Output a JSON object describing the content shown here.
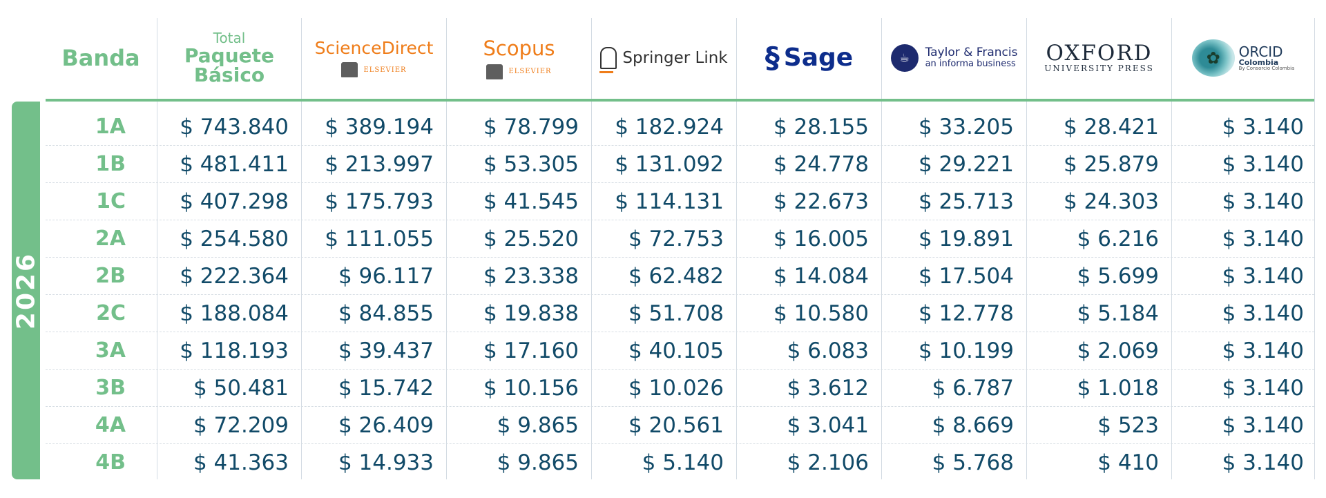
{
  "year": "2026",
  "headers": {
    "banda": "Banda",
    "total": [
      "Total",
      "Paquete",
      "Básico"
    ],
    "sciencedirect": {
      "name": "ScienceDirect",
      "sub": "ELSEVIER"
    },
    "scopus": {
      "name": "Scopus",
      "sub": "ELSEVIER"
    },
    "springer": "Springer Link",
    "sage": "Sage",
    "taylor": {
      "name": "Taylor & Francis",
      "sub": "an informa business"
    },
    "oxford": {
      "name": "OXFORD",
      "sub": "UNIVERSITY PRESS"
    },
    "orcid": {
      "name": "ORCID",
      "sub": "Colombia",
      "tag": "By Consorcio Colombia"
    }
  },
  "rows": [
    {
      "band": "1A",
      "values": [
        "$ 743.840",
        "$ 389.194",
        "$ 78.799",
        "$ 182.924",
        "$ 28.155",
        "$ 33.205",
        "$ 28.421",
        "$ 3.140"
      ]
    },
    {
      "band": "1B",
      "values": [
        "$ 481.411",
        "$ 213.997",
        "$ 53.305",
        "$ 131.092",
        "$ 24.778",
        "$ 29.221",
        "$ 25.879",
        "$ 3.140"
      ]
    },
    {
      "band": "1C",
      "values": [
        "$ 407.298",
        "$ 175.793",
        "$ 41.545",
        "$ 114.131",
        "$ 22.673",
        "$ 25.713",
        "$ 24.303",
        "$ 3.140"
      ]
    },
    {
      "band": "2A",
      "values": [
        "$ 254.580",
        "$ 111.055",
        "$ 25.520",
        "$ 72.753",
        "$ 16.005",
        "$ 19.891",
        "$ 6.216",
        "$ 3.140"
      ]
    },
    {
      "band": "2B",
      "values": [
        "$ 222.364",
        "$ 96.117",
        "$ 23.338",
        "$ 62.482",
        "$ 14.084",
        "$ 17.504",
        "$ 5.699",
        "$ 3.140"
      ]
    },
    {
      "band": "2C",
      "values": [
        "$ 188.084",
        "$ 84.855",
        "$ 19.838",
        "$ 51.708",
        "$ 10.580",
        "$ 12.778",
        "$ 5.184",
        "$ 3.140"
      ]
    },
    {
      "band": "3A",
      "values": [
        "$ 118.193",
        "$ 39.437",
        "$ 17.160",
        "$ 40.105",
        "$ 6.083",
        "$ 10.199",
        "$ 2.069",
        "$ 3.140"
      ]
    },
    {
      "band": "3B",
      "values": [
        "$ 50.481",
        "$ 15.742",
        "$ 10.156",
        "$ 10.026",
        "$ 3.612",
        "$ 6.787",
        "$ 1.018",
        "$ 3.140"
      ]
    },
    {
      "band": "4A",
      "values": [
        "$ 72.209",
        "$ 26.409",
        "$ 9.865",
        "$ 20.561",
        "$ 3.041",
        "$ 8.669",
        "$ 523",
        "$ 3.140"
      ]
    },
    {
      "band": "4B",
      "values": [
        "$ 41.363",
        "$ 14.933",
        "$ 9.865",
        "$ 5.140",
        "$ 2.106",
        "$ 5.768",
        "$ 410",
        "$ 3.140"
      ]
    }
  ],
  "colors": {
    "accent": "#73bf8a",
    "value": "#114a68"
  }
}
